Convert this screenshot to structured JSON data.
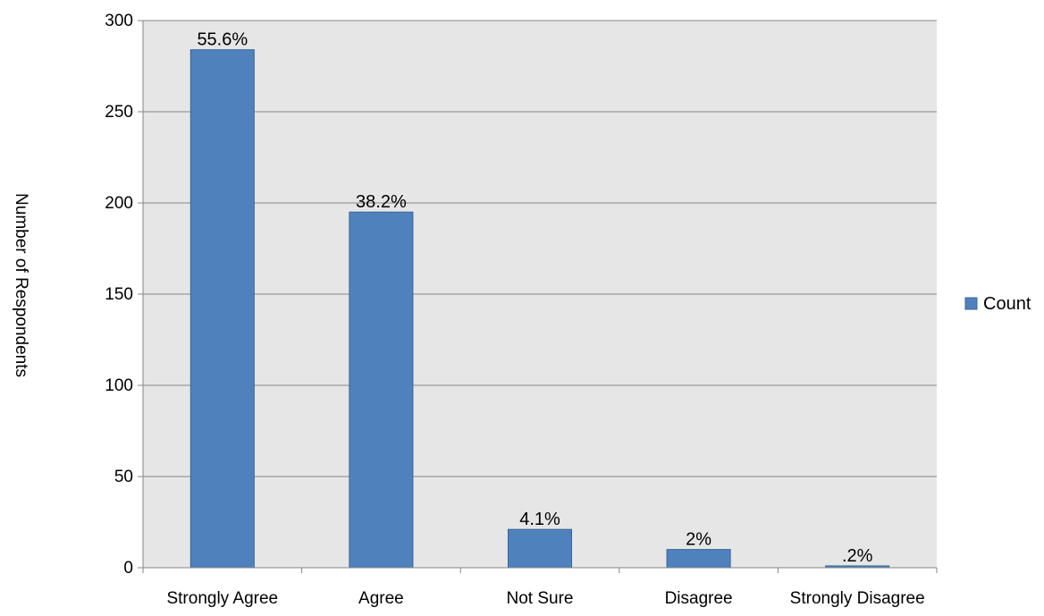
{
  "chart_data": {
    "type": "bar",
    "categories": [
      "Strongly Agree",
      "Agree",
      "Not Sure",
      "Disagree",
      "Strongly Disagree"
    ],
    "series": [
      {
        "name": "Count",
        "values": [
          284,
          195,
          21,
          10,
          1
        ],
        "data_labels": [
          "55.6%",
          "38.2%",
          "4.1%",
          "2%",
          ".2%"
        ]
      }
    ],
    "title": "",
    "xlabel": "",
    "ylabel": "Number of Respondents",
    "ylim": [
      0,
      300
    ],
    "yticks": [
      0,
      50,
      100,
      150,
      200,
      250,
      300
    ],
    "grid": true,
    "legend_position": "right",
    "colors": {
      "bar": "#4F81BD",
      "bar_border": "#3A6597",
      "plot_background": "#E6E6E6",
      "gridline": "#868686",
      "axis": "#868686"
    }
  }
}
